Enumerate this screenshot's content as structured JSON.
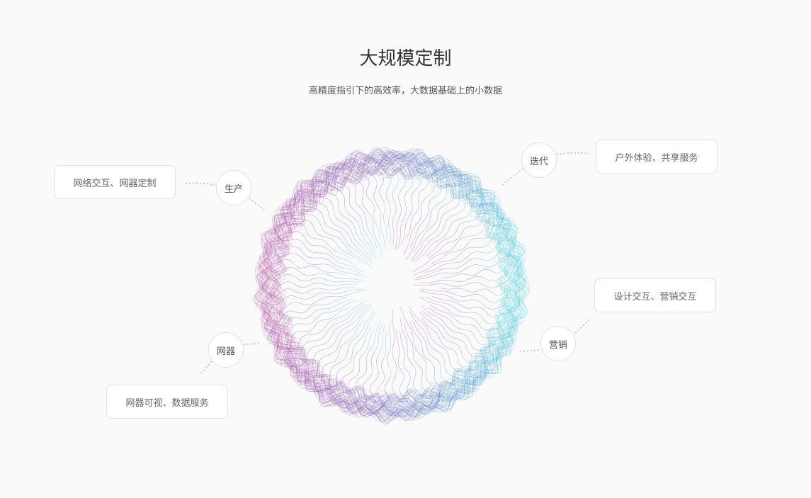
{
  "header": {
    "title": "大规模定制",
    "subtitle": "高精度指引下的高效率，大数据基础上的小数据"
  },
  "nodes": [
    {
      "label": "生产",
      "detail": "网络交互、网器定制"
    },
    {
      "label": "迭代",
      "detail": "户外体验、共享服务"
    },
    {
      "label": "网器",
      "detail": "网器可视、数据服务"
    },
    {
      "label": "营销",
      "detail": "设计交互、营销交互"
    }
  ],
  "colors": {
    "magenta": "#b0409a",
    "cyan": "#40d0e0",
    "indigo": "#5a4fb0"
  }
}
